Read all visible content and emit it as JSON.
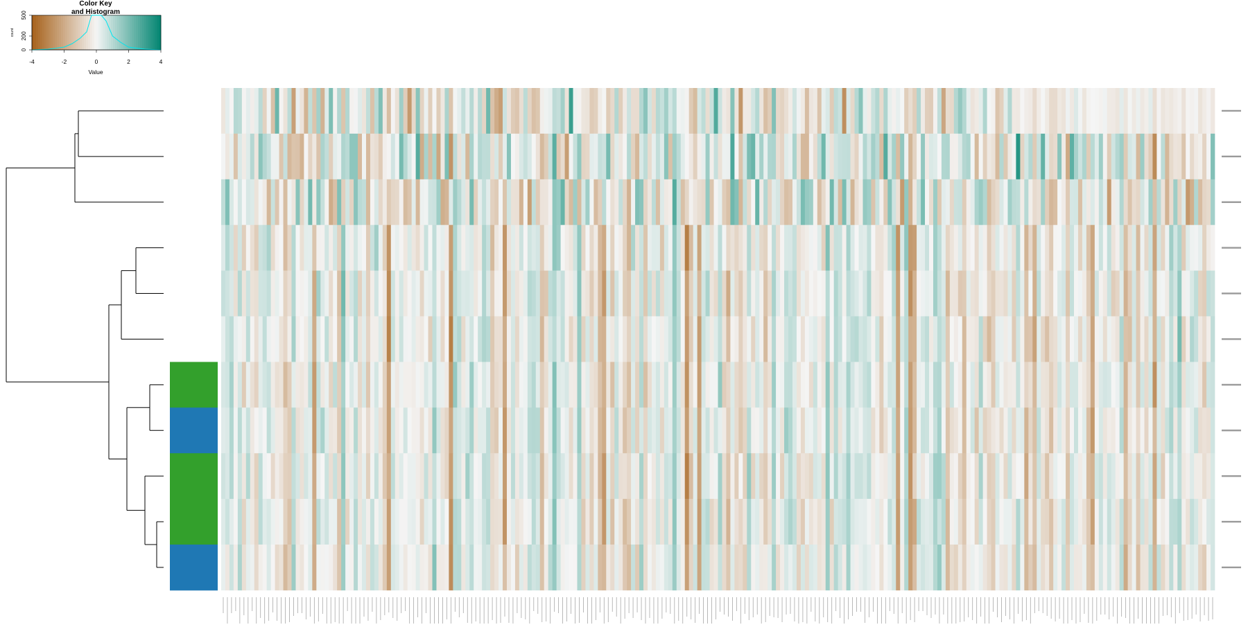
{
  "chart_data": {
    "type": "heatmap",
    "color_key": {
      "title_line1": "Color Key",
      "title_line2": "and Histogram",
      "xlabel": "Value",
      "ylabel": "count",
      "x_ticks": [
        "-4",
        "-2",
        "0",
        "2",
        "4"
      ],
      "y_ticks": [
        "0",
        "200",
        "500"
      ],
      "xlim": [
        -4,
        4
      ],
      "ylim": [
        0,
        500
      ],
      "colors": {
        "low": "#a6611a",
        "mid": "#f5f5f5",
        "high": "#018571",
        "histogram": "#00e5ee"
      },
      "histogram": [
        {
          "x": -4.0,
          "y": 0
        },
        {
          "x": -3.0,
          "y": 10
        },
        {
          "x": -2.0,
          "y": 40
        },
        {
          "x": -1.5,
          "y": 90
        },
        {
          "x": -1.0,
          "y": 170
        },
        {
          "x": -0.6,
          "y": 260
        },
        {
          "x": -0.3,
          "y": 500
        },
        {
          "x": 0.3,
          "y": 500
        },
        {
          "x": 0.6,
          "y": 420
        },
        {
          "x": 1.0,
          "y": 200
        },
        {
          "x": 1.5,
          "y": 110
        },
        {
          "x": 2.0,
          "y": 40
        },
        {
          "x": 3.0,
          "y": 10
        },
        {
          "x": 4.0,
          "y": 0
        }
      ]
    },
    "rows": [
      "r1",
      "r2",
      "r3",
      "r4",
      "r5",
      "r6",
      "r7",
      "r8",
      "r9",
      "r10",
      "r11"
    ],
    "row_labels_note": "row labels illegible at this resolution",
    "row_side_colors": [
      null,
      null,
      null,
      null,
      null,
      null,
      "#33a02c",
      "#1f78b4",
      "#33a02c",
      "#33a02c",
      "#1f78b4"
    ],
    "column_count": 240,
    "value_range": [
      -4,
      4
    ],
    "dendrogram": "row"
  }
}
